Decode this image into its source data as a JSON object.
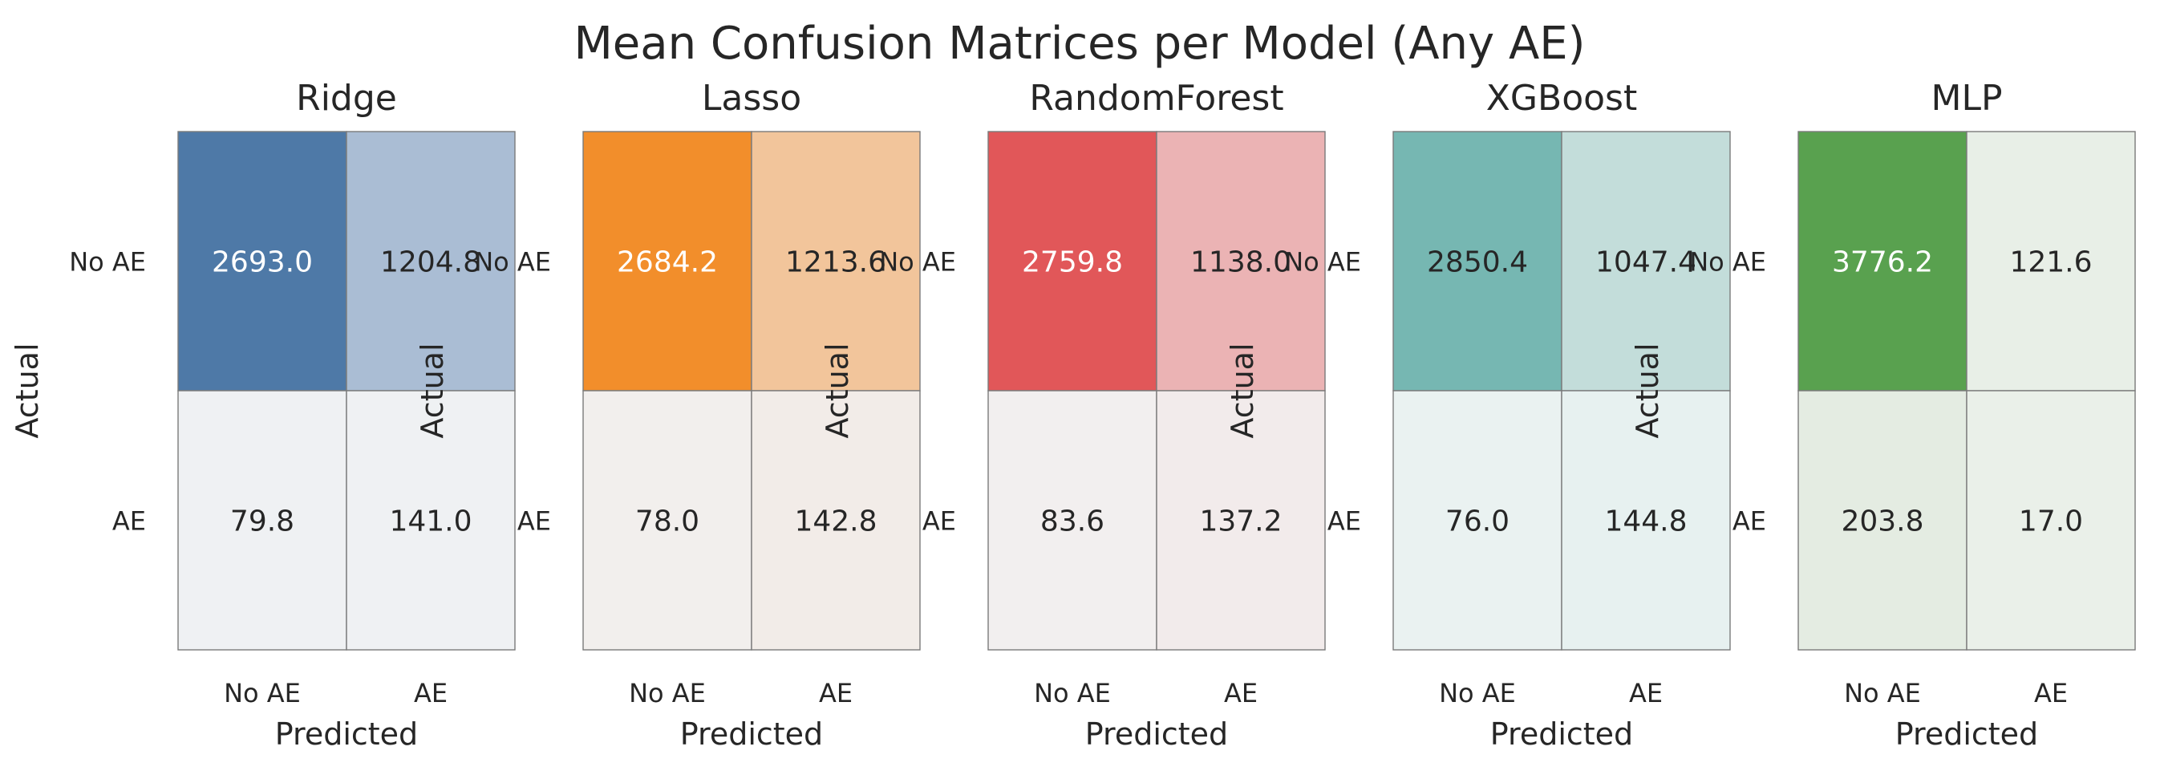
{
  "figure": {
    "title": "Mean Confusion Matrices per Model (Any AE)"
  },
  "chart_data": [
    {
      "type": "heatmap",
      "title": "Ridge",
      "xlabel": "Predicted",
      "ylabel": "Actual",
      "x_categories": [
        "No AE",
        "AE"
      ],
      "y_categories": [
        "No AE",
        "AE"
      ],
      "values": [
        [
          2693.0,
          1204.8
        ],
        [
          79.8,
          141.0
        ]
      ],
      "cell_colors": [
        [
          "#4e79a7",
          "#aabdd4"
        ],
        [
          "#eff1f3",
          "#eff1f3"
        ]
      ],
      "text_colors": [
        [
          "#ffffff",
          "#262626"
        ],
        [
          "#262626",
          "#262626"
        ]
      ],
      "colorbar": false
    },
    {
      "type": "heatmap",
      "title": "Lasso",
      "xlabel": "Predicted",
      "ylabel": "Actual",
      "x_categories": [
        "No AE",
        "AE"
      ],
      "y_categories": [
        "No AE",
        "AE"
      ],
      "values": [
        [
          2684.2,
          1213.6
        ],
        [
          78.0,
          142.8
        ]
      ],
      "cell_colors": [
        [
          "#f28e2b",
          "#f2c59b"
        ],
        [
          "#f2efed",
          "#f2ece8"
        ]
      ],
      "text_colors": [
        [
          "#ffffff",
          "#262626"
        ],
        [
          "#262626",
          "#262626"
        ]
      ],
      "colorbar": false
    },
    {
      "type": "heatmap",
      "title": "RandomForest",
      "xlabel": "Predicted",
      "ylabel": "Actual",
      "x_categories": [
        "No AE",
        "AE"
      ],
      "y_categories": [
        "No AE",
        "AE"
      ],
      "values": [
        [
          2759.8,
          1138.0
        ],
        [
          83.6,
          137.2
        ]
      ],
      "cell_colors": [
        [
          "#e15759",
          "#ebb3b4"
        ],
        [
          "#f2efef",
          "#f2ebeb"
        ]
      ],
      "text_colors": [
        [
          "#ffffff",
          "#262626"
        ],
        [
          "#262626",
          "#262626"
        ]
      ],
      "colorbar": false
    },
    {
      "type": "heatmap",
      "title": "XGBoost",
      "xlabel": "Predicted",
      "ylabel": "Actual",
      "x_categories": [
        "No AE",
        "AE"
      ],
      "y_categories": [
        "No AE",
        "AE"
      ],
      "values": [
        [
          2850.4,
          1047.4
        ],
        [
          76.0,
          144.8
        ]
      ],
      "cell_colors": [
        [
          "#76b7b2",
          "#c3ddda"
        ],
        [
          "#eaf2f1",
          "#e7f1f0"
        ]
      ],
      "text_colors": [
        [
          "#262626",
          "#262626"
        ],
        [
          "#262626",
          "#262626"
        ]
      ],
      "colorbar": false
    },
    {
      "type": "heatmap",
      "title": "MLP",
      "xlabel": "Predicted",
      "ylabel": "Actual",
      "x_categories": [
        "No AE",
        "AE"
      ],
      "y_categories": [
        "No AE",
        "AE"
      ],
      "values": [
        [
          3776.2,
          121.6
        ],
        [
          203.8,
          17.0
        ]
      ],
      "cell_colors": [
        [
          "#59a14f",
          "#e8efe7"
        ],
        [
          "#e4ece2",
          "#eaf0e9"
        ]
      ],
      "text_colors": [
        [
          "#ffffff",
          "#262626"
        ],
        [
          "#262626",
          "#262626"
        ]
      ],
      "colorbar": false
    }
  ]
}
